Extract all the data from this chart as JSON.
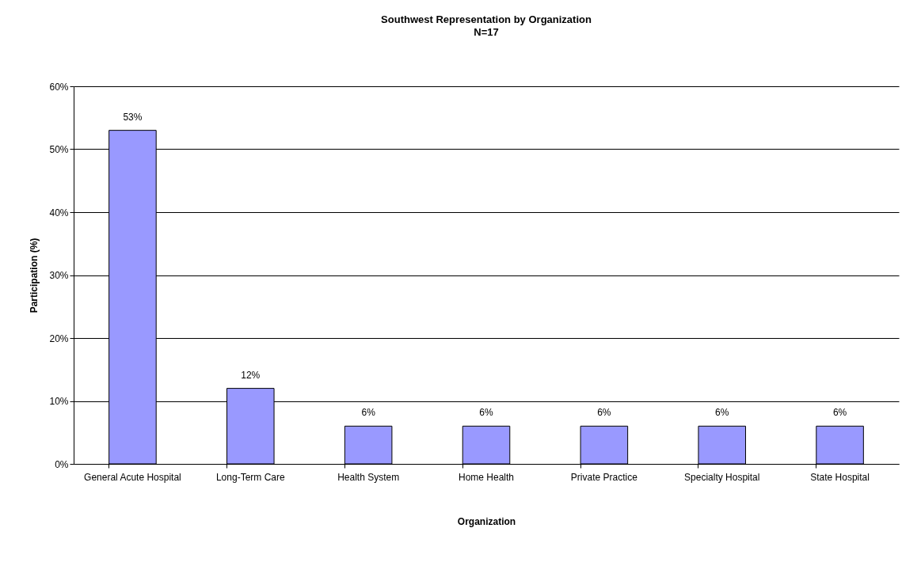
{
  "chart_data": {
    "type": "bar",
    "title": "Southwest Representation by Organization",
    "subtitle": "N=17",
    "xlabel": "Organization",
    "ylabel": "Participation (%)",
    "categories": [
      "General Acute Hospital",
      "Long-Term Care",
      "Health System",
      "Home Health",
      "Private Practice",
      "Specialty Hospital",
      "State Hospital"
    ],
    "values": [
      53,
      12,
      6,
      6,
      6,
      6,
      6
    ],
    "value_labels": [
      "53%",
      "12%",
      "6%",
      "6%",
      "6%",
      "6%",
      "6%"
    ],
    "color": "#9999ff",
    "ylim": [
      0,
      60
    ],
    "yticks": [
      {
        "value": 0,
        "label": "0%"
      },
      {
        "value": 10,
        "label": "10%"
      },
      {
        "value": 20,
        "label": "20%"
      },
      {
        "value": 30,
        "label": "30%"
      },
      {
        "value": 40,
        "label": "40%"
      },
      {
        "value": 50,
        "label": "50%"
      },
      {
        "value": 60,
        "label": "60%"
      }
    ],
    "grid": "y"
  }
}
